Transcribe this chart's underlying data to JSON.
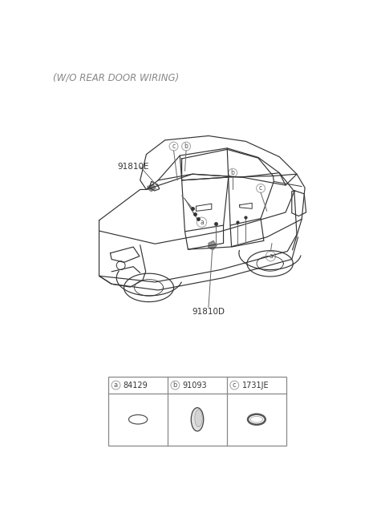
{
  "title_text": "(W/O REAR DOOR WIRING)",
  "title_color": "#888888",
  "title_fontsize": 8.5,
  "bg_color": "#ffffff",
  "label_91810E": "91810E",
  "label_91810D": "91810D",
  "parts": [
    {
      "label": "a",
      "part_num": "84129"
    },
    {
      "label": "b",
      "part_num": "91093"
    },
    {
      "label": "c",
      "part_num": "1731JE"
    }
  ],
  "car_color": "#333333",
  "annotation_color": "#666666",
  "table_border_color": "#888888"
}
